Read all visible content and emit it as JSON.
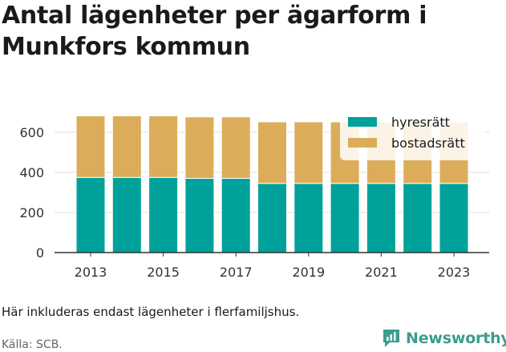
{
  "title": "Antal lägenheter per ägarform i Munkfors kommun",
  "note": "Här inkluderas endast lägenheter i flerfamiljshus.",
  "source": "Källa: SCB.",
  "brand": {
    "name": "Newsworthy",
    "icon": "newsworthy-logo-icon"
  },
  "colors": {
    "hyresratt": "#00a19a",
    "bostadsratt": "#dbad5a",
    "brand": "#3d9c8e"
  },
  "chart_data": {
    "type": "bar",
    "stacked": true,
    "categories": [
      "2013",
      "2014",
      "2015",
      "2016",
      "2017",
      "2018",
      "2019",
      "2020",
      "2021",
      "2022",
      "2023"
    ],
    "x_tick_labels": [
      "2013",
      "2015",
      "2017",
      "2019",
      "2021",
      "2023"
    ],
    "series": [
      {
        "name": "hyresrätt",
        "color": "#00a19a",
        "values": [
          375,
          375,
          375,
          370,
          370,
          345,
          345,
          345,
          345,
          345,
          345
        ]
      },
      {
        "name": "bostadsrätt",
        "color": "#dbad5a",
        "values": [
          307,
          307,
          307,
          307,
          307,
          307,
          307,
          307,
          307,
          307,
          307
        ]
      }
    ],
    "y_ticks": [
      0,
      200,
      400,
      600
    ],
    "ylim": [
      0,
      700
    ],
    "grid": true,
    "legend_position": "top-right"
  }
}
